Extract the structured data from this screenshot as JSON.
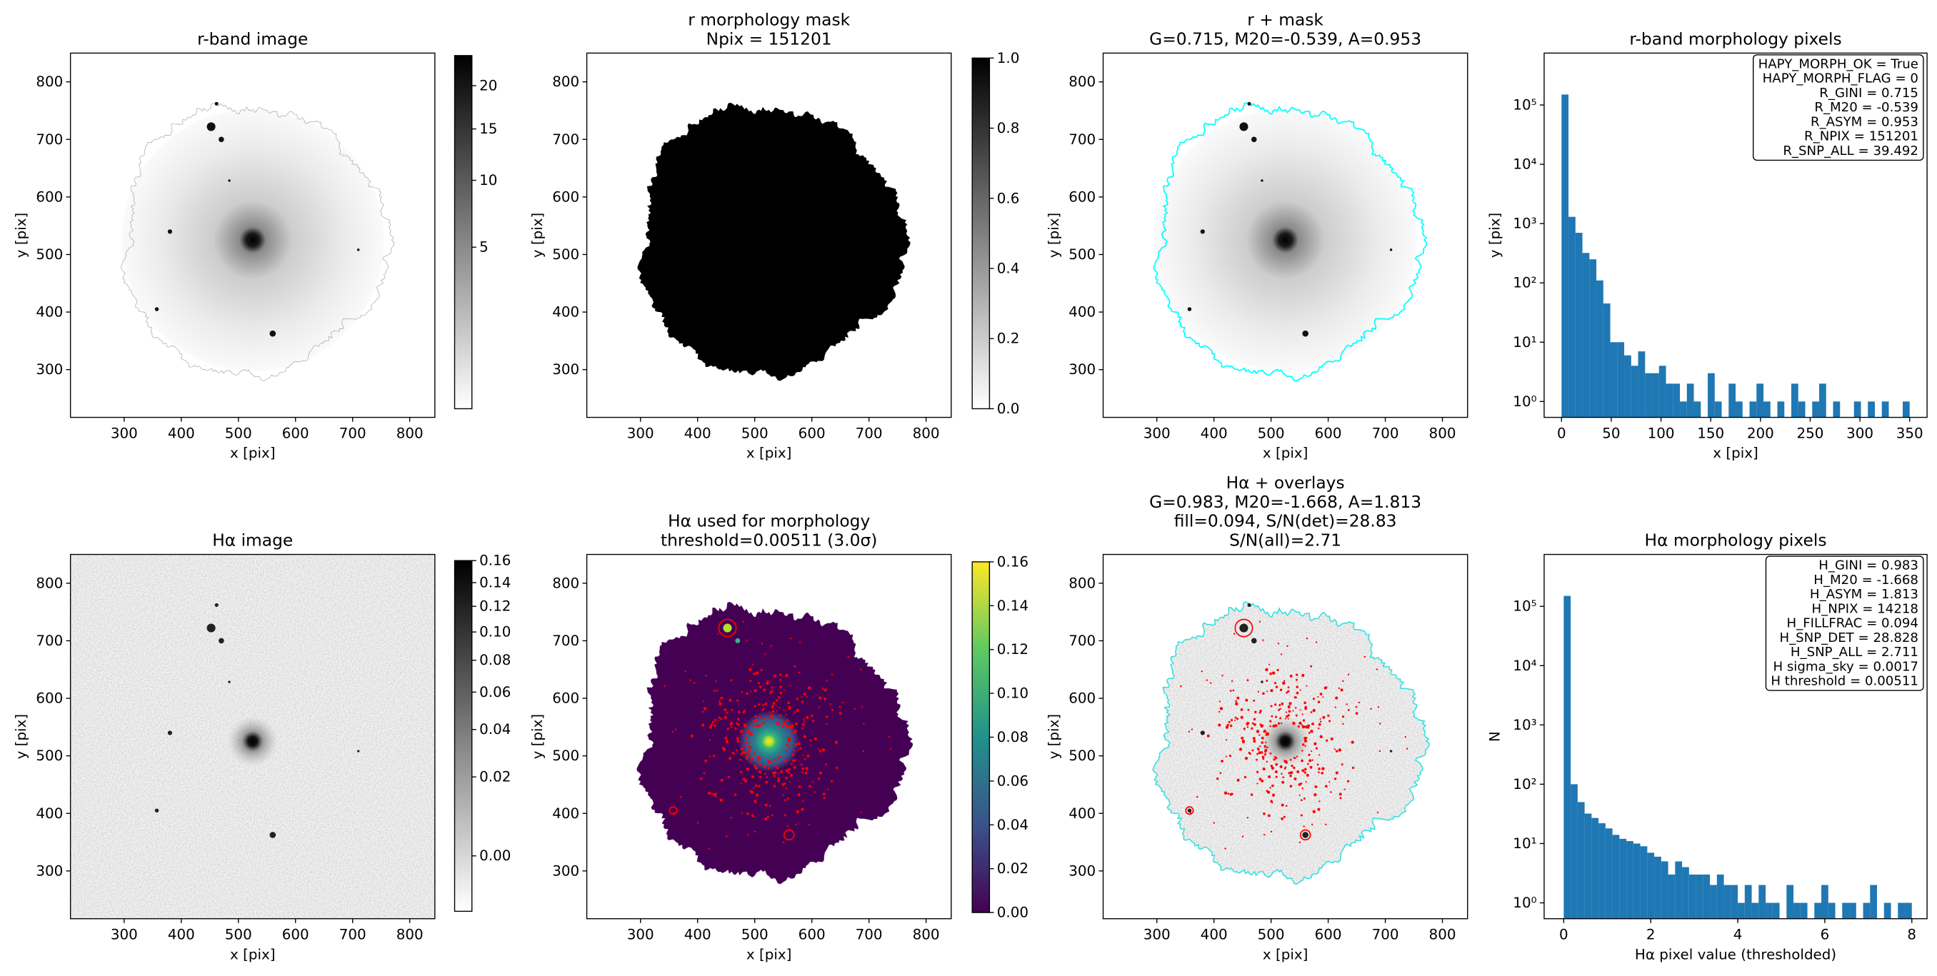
{
  "chart_data": [
    {
      "type": "image",
      "title": [
        "r-band image"
      ],
      "xlabel": "x [pix]",
      "ylabel": "y [pix]",
      "xlim": [
        206,
        844
      ],
      "ylim": [
        217,
        850
      ],
      "xticks": [
        300,
        400,
        500,
        600,
        700,
        800
      ],
      "yticks": [
        300,
        400,
        500,
        600,
        700,
        800
      ],
      "colorbar": {
        "cmap": "gray_r",
        "stretch": "sqrt",
        "clim": [
          0,
          23.9
        ],
        "ticks": [
          5,
          10,
          15,
          20
        ]
      }
    },
    {
      "type": "image",
      "title": [
        "r morphology mask",
        "Npix = 151201"
      ],
      "xlabel": "x [pix]",
      "ylabel": "y [pix]",
      "xlim": [
        206,
        844
      ],
      "ylim": [
        217,
        850
      ],
      "xticks": [
        300,
        400,
        500,
        600,
        700,
        800
      ],
      "yticks": [
        300,
        400,
        500,
        600,
        700,
        800
      ],
      "colorbar": {
        "cmap": "gray_r",
        "stretch": "linear",
        "clim": [
          0,
          1
        ],
        "ticks": [
          {
            "value": 0,
            "label": "0.0"
          },
          0.2,
          0.4,
          0.6,
          0.8,
          {
            "value": 1,
            "label": "1.0"
          }
        ]
      }
    },
    {
      "type": "image",
      "title": [
        "r + mask",
        "G=0.715, M20=-0.539, A=0.953"
      ],
      "xlabel": "x [pix]",
      "ylabel": "y [pix]",
      "xlim": [
        206,
        844
      ],
      "ylim": [
        217,
        850
      ],
      "xticks": [
        300,
        400,
        500,
        600,
        700,
        800
      ],
      "yticks": [
        300,
        400,
        500,
        600,
        700,
        800
      ]
    },
    {
      "type": "histogram",
      "title": [
        "r-band morphology pixels"
      ],
      "xlabel": "x [pix]",
      "ylabel": "y [pix]",
      "color": "#1f77b4",
      "yscale": "log",
      "xlim": [
        -17.5,
        367.5
      ],
      "ylim": [
        0.54,
        750000
      ],
      "xticks": [
        0,
        50,
        100,
        150,
        200,
        250,
        300,
        350
      ],
      "yticks": [
        {
          "value": 1,
          "label": "10⁰"
        },
        {
          "value": 10,
          "label": "10¹"
        },
        {
          "value": 100,
          "label": "10²"
        },
        {
          "value": 1000,
          "label": "10³"
        },
        {
          "value": 10000,
          "label": "10⁴"
        },
        {
          "value": 100000,
          "label": "10⁵"
        }
      ],
      "bins": [
        0,
        7,
        14,
        21,
        28,
        35,
        42,
        49,
        56,
        63,
        70,
        77,
        84,
        91,
        98,
        105,
        112,
        119,
        126,
        133,
        140,
        147,
        154,
        161,
        168,
        175,
        182,
        189,
        196,
        203,
        210,
        217,
        224,
        231,
        238,
        245,
        252,
        259,
        266,
        273,
        280,
        287,
        294,
        301,
        308,
        315,
        322,
        329,
        336,
        343,
        350
      ],
      "counts": [
        150000,
        1300,
        700,
        320,
        250,
        110,
        45,
        10,
        10,
        6,
        4,
        7,
        3,
        3,
        4,
        2,
        2,
        1,
        2,
        1,
        0,
        3,
        1,
        0,
        2,
        1,
        0,
        1,
        2,
        1,
        0,
        1,
        0,
        2,
        1,
        0,
        1,
        2,
        0,
        1,
        0,
        0,
        1,
        0,
        1,
        0,
        1,
        0,
        0,
        1
      ],
      "annotations": [
        "HAPY_MORPH_OK = True",
        "HAPY_MORPH_FLAG = 0",
        "R_GINI = 0.715",
        "R_M20 = -0.539",
        "R_ASYM = 0.953",
        "R_NPIX = 151201",
        "R_SNP_ALL = 39.492"
      ]
    },
    {
      "type": "image",
      "title": [
        "Hα image"
      ],
      "xlabel": "x [pix]",
      "ylabel": "y [pix]",
      "xlim": [
        206,
        844
      ],
      "ylim": [
        217,
        850
      ],
      "xticks": [
        300,
        400,
        500,
        600,
        700,
        800
      ],
      "yticks": [
        300,
        400,
        500,
        600,
        700,
        800
      ],
      "colorbar": {
        "cmap": "gray_r",
        "stretch": "sqrt",
        "clim": [
          -0.0041,
          0.16
        ],
        "ticks": [
          {
            "value": 0,
            "label": "0.00"
          },
          0.02,
          0.04,
          0.06,
          0.08,
          {
            "value": 0.1,
            "label": "0.10"
          },
          0.12,
          0.14,
          0.16
        ]
      }
    },
    {
      "type": "image",
      "title": [
        "Hα used for morphology",
        "threshold=0.00511 (3.0σ)"
      ],
      "xlabel": "x [pix]",
      "ylabel": "y [pix]",
      "xlim": [
        206,
        844
      ],
      "ylim": [
        217,
        850
      ],
      "xticks": [
        300,
        400,
        500,
        600,
        700,
        800
      ],
      "yticks": [
        300,
        400,
        500,
        600,
        700,
        800
      ],
      "colorbar": {
        "cmap": "viridis",
        "stretch": "linear",
        "clim": [
          0,
          0.16
        ],
        "ticks": [
          {
            "value": 0,
            "label": "0.00"
          },
          0.02,
          0.04,
          0.06,
          0.08,
          {
            "value": 0.1,
            "label": "0.10"
          },
          0.12,
          0.14,
          0.16
        ]
      }
    },
    {
      "type": "image",
      "title": [
        "Hα + overlays",
        "G=0.983, M20=-1.668, A=1.813",
        "fill=0.094, S/N(det)=28.83",
        "S/N(all)=2.71"
      ],
      "xlabel": "x [pix]",
      "ylabel": "y [pix]",
      "xlim": [
        206,
        844
      ],
      "ylim": [
        217,
        850
      ],
      "xticks": [
        300,
        400,
        500,
        600,
        700,
        800
      ],
      "yticks": [
        300,
        400,
        500,
        600,
        700,
        800
      ]
    },
    {
      "type": "histogram",
      "title": [
        "Hα morphology pixels"
      ],
      "xlabel": "Hα pixel value (thresholded)",
      "ylabel": "N",
      "color": "#1f77b4",
      "yscale": "log",
      "xlim": [
        -0.45,
        8.35
      ],
      "ylim": [
        0.54,
        750000
      ],
      "xticks": [
        0,
        2,
        4,
        6,
        8
      ],
      "yticks": [
        {
          "value": 1,
          "label": "10⁰"
        },
        {
          "value": 10,
          "label": "10¹"
        },
        {
          "value": 100,
          "label": "10²"
        },
        {
          "value": 1000,
          "label": "10³"
        },
        {
          "value": 10000,
          "label": "10⁴"
        },
        {
          "value": 100000,
          "label": "10⁵"
        }
      ],
      "bins": [
        0,
        0.16,
        0.32,
        0.48,
        0.64,
        0.8,
        0.96,
        1.12,
        1.28,
        1.44,
        1.6,
        1.76,
        1.92,
        2.08,
        2.24,
        2.4,
        2.56,
        2.72,
        2.88,
        3.04,
        3.2,
        3.36,
        3.52,
        3.68,
        3.84,
        4,
        4.16,
        4.32,
        4.48,
        4.64,
        4.8,
        4.96,
        5.12,
        5.28,
        5.44,
        5.6,
        5.76,
        5.92,
        6.08,
        6.24,
        6.4,
        6.56,
        6.72,
        6.88,
        7.04,
        7.2,
        7.36,
        7.52,
        7.68,
        7.84,
        8
      ],
      "counts": [
        150000,
        100,
        50,
        32,
        27,
        22,
        18,
        14,
        12,
        11,
        10,
        9,
        7,
        6,
        5,
        3,
        5,
        4,
        3,
        3,
        3,
        2,
        3,
        2,
        2,
        1,
        2,
        1,
        2,
        1,
        1,
        0,
        2,
        1,
        1,
        0,
        1,
        2,
        1,
        0,
        1,
        1,
        0,
        1,
        2,
        0,
        1,
        0,
        1,
        1
      ],
      "annotations": [
        "H_GINI = 0.983",
        "H_M20 = -1.668",
        "H_ASYM = 1.813",
        "H_NPIX = 14218",
        "H_FILLFRAC = 0.094",
        "H_SNP_DET = 28.828",
        "H_SNP_ALL = 2.711",
        "H sigma_sky = 0.0017",
        "H threshold = 0.00511"
      ]
    }
  ]
}
